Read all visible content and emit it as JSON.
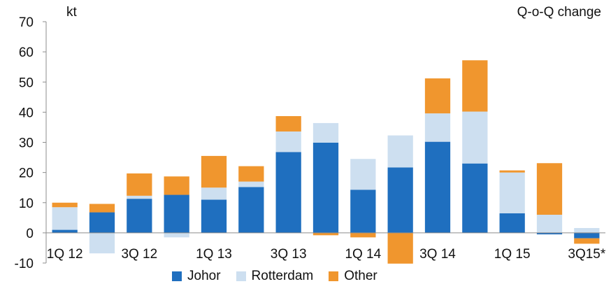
{
  "chart_data": {
    "type": "bar",
    "stacked": true,
    "ylabel": "kt",
    "annotation": "Q-o-Q change",
    "ylim": [
      -10,
      70
    ],
    "yticks": [
      -10,
      0,
      10,
      20,
      30,
      40,
      50,
      60,
      70
    ],
    "grid": false,
    "legend_position": "bottom",
    "tick_labels": [
      "1Q 12",
      "3Q 12",
      "1Q 13",
      "3Q 13",
      "1Q 14",
      "3Q 14",
      "1Q 15",
      "3Q15*"
    ],
    "categories": [
      "1Q 12",
      "2Q 12",
      "3Q 12",
      "4Q 12",
      "1Q 13",
      "2Q 13",
      "3Q 13",
      "4Q 13",
      "1Q 14",
      "2Q 14",
      "3Q 14",
      "4Q 14",
      "1Q 15",
      "2Q 15",
      "3Q15*"
    ],
    "series": [
      {
        "name": "Johor",
        "color": "#1f6fbf",
        "values": [
          1,
          6.8,
          11.3,
          12.6,
          11,
          15.2,
          26.8,
          29.9,
          14.3,
          21.7,
          30.2,
          23,
          6.5,
          -0.5,
          -1.8
        ]
      },
      {
        "name": "Rotterdam",
        "color": "#cddff0",
        "values": [
          7.5,
          -6.8,
          1,
          -1.5,
          4,
          1.8,
          6.8,
          6.5,
          10.2,
          10.6,
          9.4,
          17.2,
          13.5,
          6,
          1.6
        ]
      },
      {
        "name": "Other",
        "color": "#f0962e",
        "values": [
          1.5,
          2.8,
          7.4,
          6.1,
          10.5,
          5.1,
          5.1,
          -0.8,
          -1.5,
          -10.2,
          11.6,
          17,
          0.7,
          17.1,
          -1.8
        ]
      }
    ]
  }
}
